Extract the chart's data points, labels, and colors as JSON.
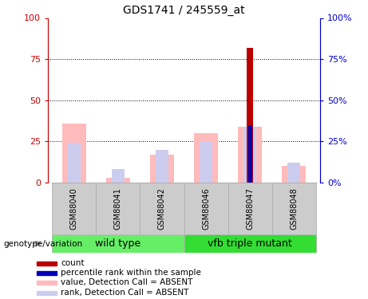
{
  "title": "GDS1741 / 245559_at",
  "samples": [
    "GSM88040",
    "GSM88041",
    "GSM88042",
    "GSM88046",
    "GSM88047",
    "GSM88048"
  ],
  "group1_label": "wild type",
  "group2_label": "vfb triple mutant",
  "group1_indices": [
    0,
    1,
    2
  ],
  "group2_indices": [
    3,
    4,
    5
  ],
  "group1_color": "#66ee66",
  "group2_color": "#33dd33",
  "pink_bar_values": [
    36,
    3,
    17,
    30,
    34,
    10
  ],
  "lavender_bar_values": [
    24,
    8,
    20,
    25,
    34,
    12
  ],
  "red_bar_values": [
    0,
    0,
    0,
    0,
    82,
    0
  ],
  "blue_bar_values": [
    0,
    0,
    0,
    0,
    35,
    0
  ],
  "pink_color": "#ffbbbb",
  "lavender_color": "#ccccee",
  "red_color": "#bb0000",
  "blue_color": "#0000bb",
  "left_axis_color": "#cc0000",
  "right_axis_color": "#0000cc",
  "ylim": [
    0,
    100
  ],
  "yticks": [
    0,
    25,
    50,
    75,
    100
  ],
  "ytick_labels_left": [
    "0",
    "25",
    "50",
    "75",
    "100"
  ],
  "ytick_labels_right": [
    "0%",
    "25%",
    "50%",
    "75%",
    "100%"
  ],
  "grid_values": [
    25,
    50,
    75
  ],
  "legend_items": [
    {
      "color": "#bb0000",
      "label": "count"
    },
    {
      "color": "#0000bb",
      "label": "percentile rank within the sample"
    },
    {
      "color": "#ffbbbb",
      "label": "value, Detection Call = ABSENT"
    },
    {
      "color": "#ccccee",
      "label": "rank, Detection Call = ABSENT"
    }
  ],
  "xlabel_genotype": "genotype/variation",
  "sample_box_color": "#cccccc",
  "title_fontsize": 10,
  "tick_fontsize": 8,
  "sample_fontsize": 7,
  "group_fontsize": 9,
  "legend_fontsize": 7.5,
  "genotype_fontsize": 7.5
}
